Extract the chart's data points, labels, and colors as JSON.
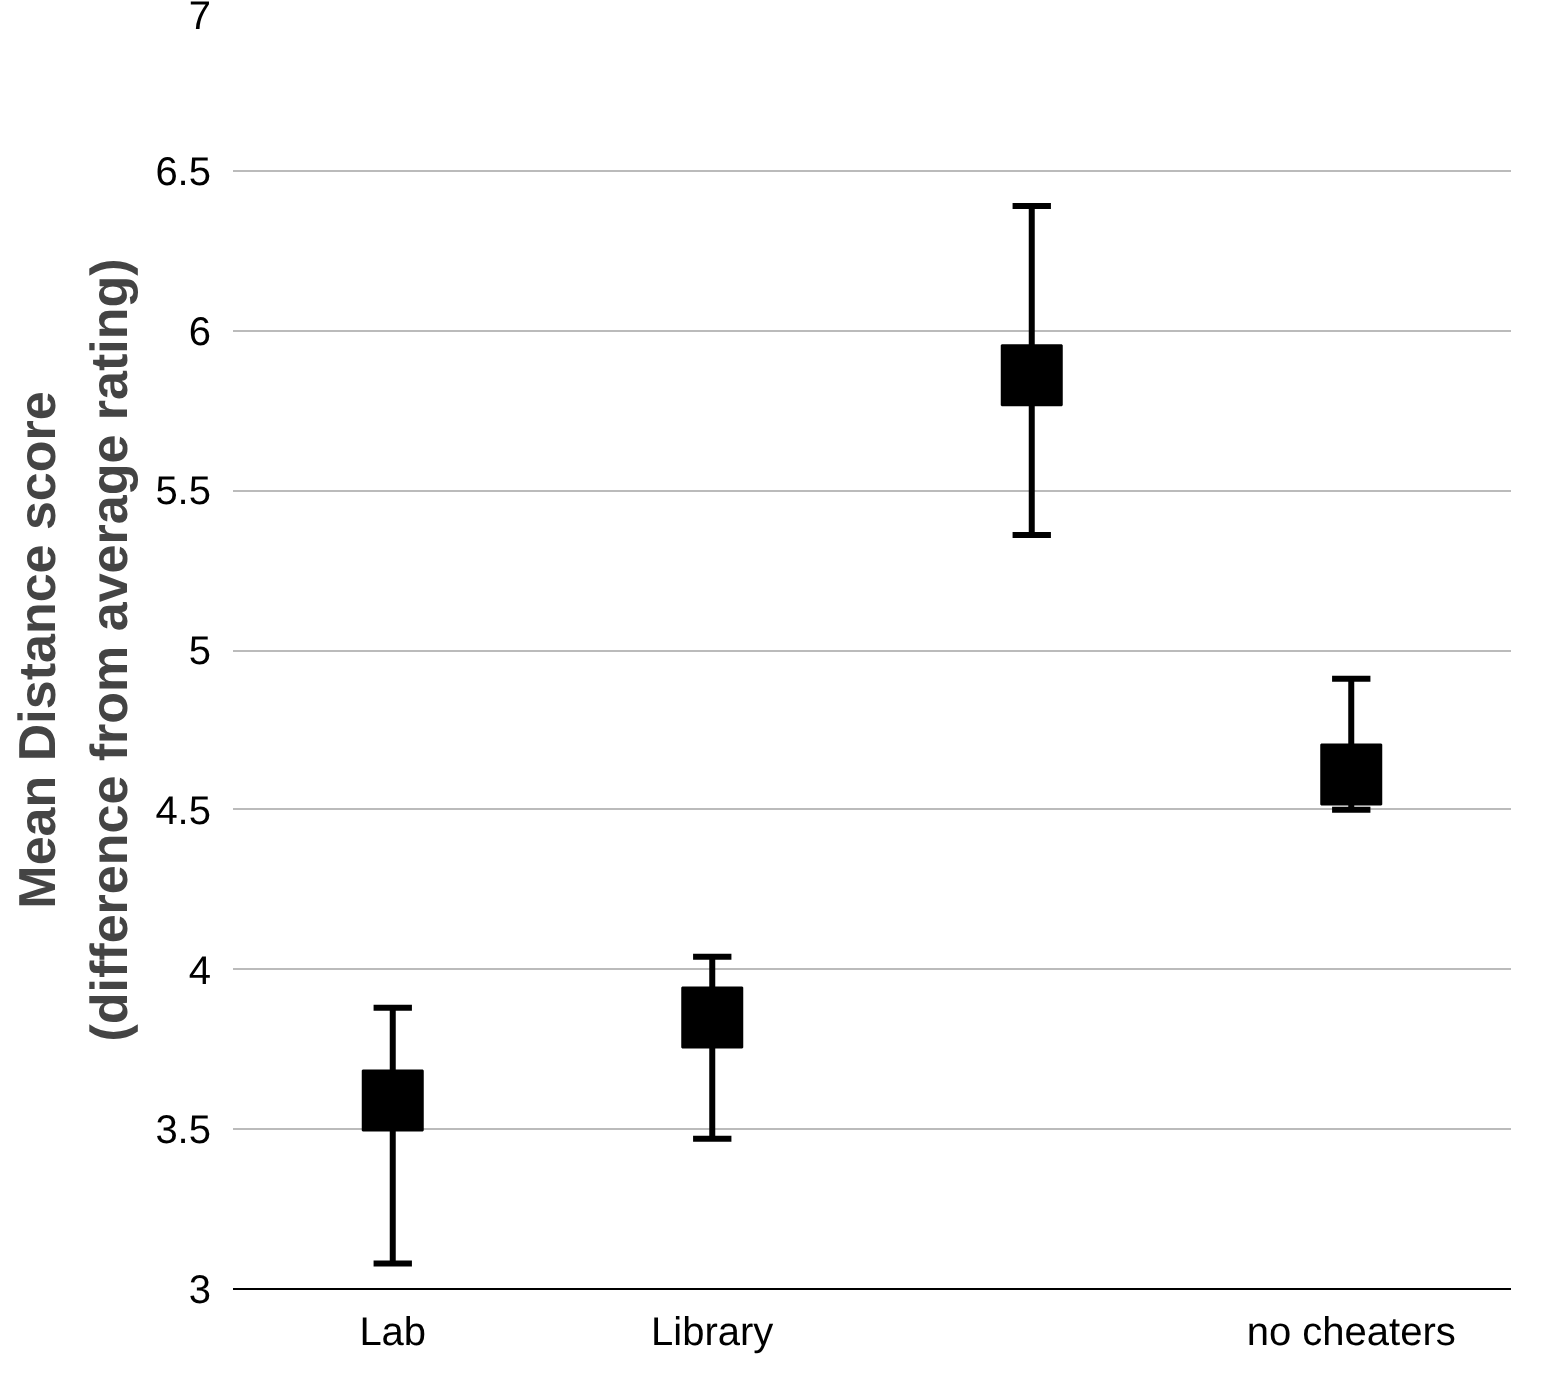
{
  "chart_data": {
    "type": "scatter",
    "ylabel": "Mean Distance score\n(difference from average rating)",
    "categories": [
      "Lab",
      "Library",
      null,
      "no cheaters"
    ],
    "values": [
      3.59,
      3.85,
      5.86,
      4.61
    ],
    "errors": [
      [
        3.08,
        3.88
      ],
      [
        3.47,
        4.04
      ],
      [
        5.36,
        6.39
      ],
      [
        4.5,
        4.91
      ]
    ],
    "color": "#000000",
    "marker": "square",
    "ylim": [
      3,
      7
    ],
    "yticks": [
      3,
      3.5,
      4,
      4.5,
      5,
      5.5,
      6,
      6.5,
      7
    ],
    "grid": "y"
  }
}
